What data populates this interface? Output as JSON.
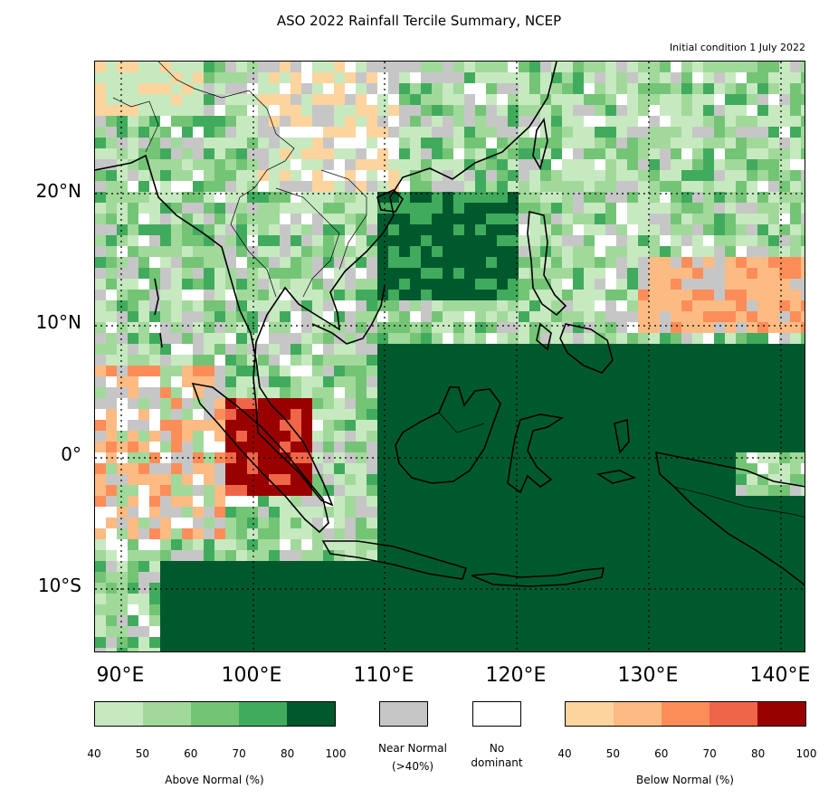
{
  "title": "ASO 2022 Rainfall Tercile Summary, NCEP",
  "subtitle": "Initial condition 1 July 2022",
  "axes": {
    "y_labels": [
      "20°N",
      "10°N",
      "0°",
      "10°S"
    ],
    "x_labels": [
      "90°E",
      "100°E",
      "110°E",
      "120°E",
      "130°E",
      "140°E"
    ]
  },
  "legend": {
    "above": {
      "label": "Above Normal (%)",
      "ticks": [
        "40",
        "50",
        "60",
        "70",
        "80",
        "100"
      ],
      "colors": [
        "#c7e9c0",
        "#a1d99b",
        "#74c476",
        "#41ab5d",
        "#00592d"
      ]
    },
    "near_normal": {
      "label_line1": "Near Normal",
      "label_line2": "(>40%)",
      "color": "#c6c6c6"
    },
    "no_dominant": {
      "label_line1": "No",
      "label_line2": "dominant",
      "color": "#ffffff"
    },
    "below": {
      "label": "Below Normal (%)",
      "ticks": [
        "40",
        "50",
        "60",
        "70",
        "80",
        "100"
      ],
      "colors": [
        "#fdd49e",
        "#fdbb84",
        "#fc8d59",
        "#ef6548",
        "#990000"
      ]
    }
  },
  "map": {
    "lon_range": [
      88,
      142
    ],
    "lat_range": [
      -15,
      30
    ],
    "gridlines": "dotted"
  }
}
